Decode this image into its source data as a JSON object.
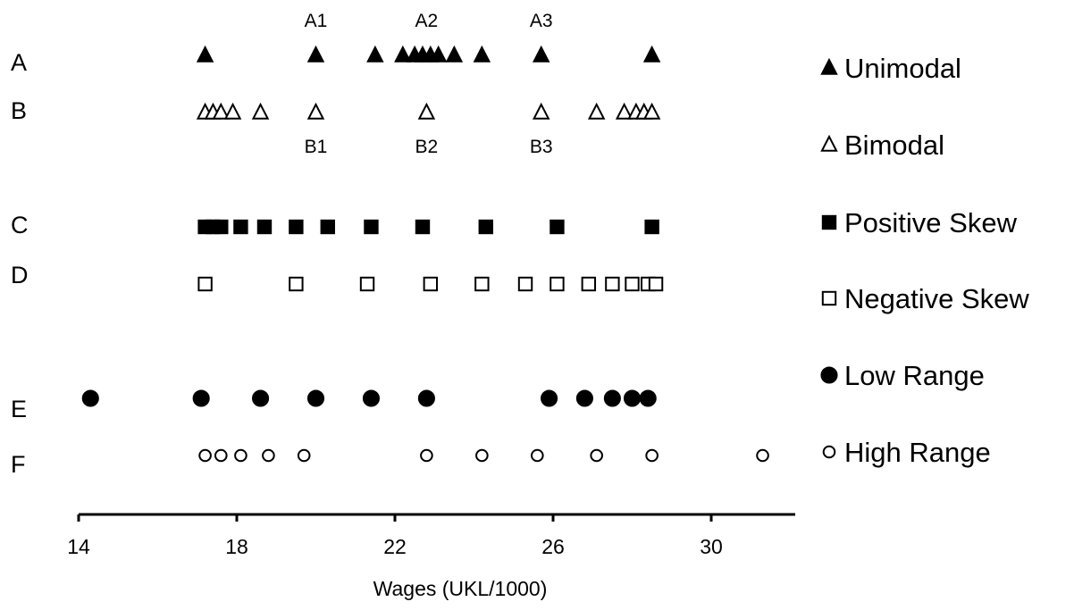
{
  "chart_data": {
    "type": "scatter",
    "xlabel": "Wages (UKL/1000)",
    "x_ticks": [
      14,
      18,
      22,
      26,
      30
    ],
    "xlim": [
      14,
      32
    ],
    "grid": false,
    "legend_placement": "right",
    "rows": [
      "A",
      "B",
      "C",
      "D",
      "E",
      "F"
    ],
    "series": [
      {
        "row": "A",
        "name": "Unimodal",
        "marker": "triangle",
        "filled": true,
        "x": [
          17.2,
          20.0,
          21.5,
          22.2,
          22.5,
          22.7,
          22.9,
          23.1,
          23.5,
          24.2,
          25.7,
          28.5
        ]
      },
      {
        "row": "B",
        "name": "Bimodal",
        "marker": "triangle",
        "filled": false,
        "x": [
          17.2,
          17.4,
          17.6,
          17.9,
          18.6,
          20.0,
          22.8,
          25.7,
          27.1,
          27.8,
          28.1,
          28.3,
          28.5
        ]
      },
      {
        "row": "C",
        "name": "Positive Skew",
        "marker": "square",
        "filled": true,
        "x": [
          17.2,
          17.4,
          17.6,
          18.1,
          18.7,
          19.5,
          20.3,
          21.4,
          22.7,
          24.3,
          26.1,
          28.5
        ]
      },
      {
        "row": "D",
        "name": "Negative Skew",
        "marker": "square",
        "filled": false,
        "x": [
          17.2,
          19.5,
          21.3,
          22.9,
          24.2,
          25.3,
          26.1,
          26.9,
          27.5,
          28.0,
          28.4,
          28.6
        ]
      },
      {
        "row": "E",
        "name": "Low Range",
        "marker": "circle",
        "filled": true,
        "x": [
          14.3,
          17.1,
          18.6,
          20.0,
          21.4,
          22.8,
          25.9,
          26.8,
          27.5,
          28.0,
          28.4
        ]
      },
      {
        "row": "F",
        "name": "High Range",
        "marker": "circle",
        "filled": false,
        "x": [
          17.2,
          17.6,
          18.1,
          18.8,
          19.7,
          22.8,
          24.2,
          25.6,
          27.1,
          28.5,
          31.3
        ]
      }
    ],
    "annotations": [
      {
        "text": "A1",
        "row": "A",
        "x": 20.0,
        "position": "above"
      },
      {
        "text": "A2",
        "row": "A",
        "x": 22.8,
        "position": "above"
      },
      {
        "text": "A3",
        "row": "A",
        "x": 25.7,
        "position": "above"
      },
      {
        "text": "B1",
        "row": "B",
        "x": 20.0,
        "position": "below"
      },
      {
        "text": "B2",
        "row": "B",
        "x": 22.8,
        "position": "below"
      },
      {
        "text": "B3",
        "row": "B",
        "x": 25.7,
        "position": "below"
      }
    ]
  }
}
